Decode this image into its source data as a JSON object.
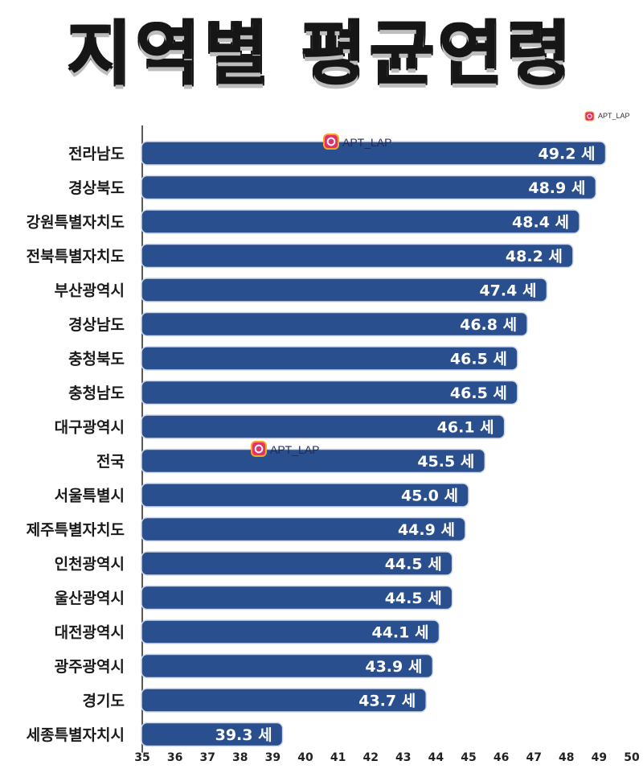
{
  "watermark": {
    "text": "APT_LAP",
    "icon": "instagram-icon"
  },
  "colors": {
    "bar": "#2a4f8f",
    "bar_edge": "#cfd8e8",
    "axis": "#222222"
  },
  "chart_data": {
    "type": "bar",
    "orientation": "horizontal",
    "title": "지역별 평균연령",
    "categories": [
      "전라남도",
      "경상북도",
      "강원특별자치도",
      "전북특별자치도",
      "부산광역시",
      "경상남도",
      "충청북도",
      "충청남도",
      "대구광역시",
      "전국",
      "서울특별시",
      "제주특별자치도",
      "인천광역시",
      "울산광역시",
      "대전광역시",
      "광주광역시",
      "경기도",
      "세종특별자치시"
    ],
    "values": [
      49.2,
      48.9,
      48.4,
      48.2,
      47.4,
      46.8,
      46.5,
      46.5,
      46.1,
      45.5,
      45.0,
      44.9,
      44.5,
      44.5,
      44.1,
      43.9,
      43.7,
      39.3
    ],
    "value_labels": [
      "49.2 세",
      "48.9 세",
      "48.4 세",
      "48.2 세",
      "47.4 세",
      "46.8 세",
      "46.5 세",
      "46.5 세",
      "46.1 세",
      "45.5 세",
      "45.0 세",
      "44.9 세",
      "44.5 세",
      "44.5 세",
      "44.1 세",
      "43.9 세",
      "43.7 세",
      "39.3 세"
    ],
    "xlim": [
      35,
      50
    ],
    "xticks": [
      "35",
      "36",
      "37",
      "38",
      "39",
      "40",
      "41",
      "42",
      "43",
      "44",
      "45",
      "46",
      "47",
      "48",
      "49",
      "50"
    ],
    "grid": false,
    "legend": "none"
  }
}
